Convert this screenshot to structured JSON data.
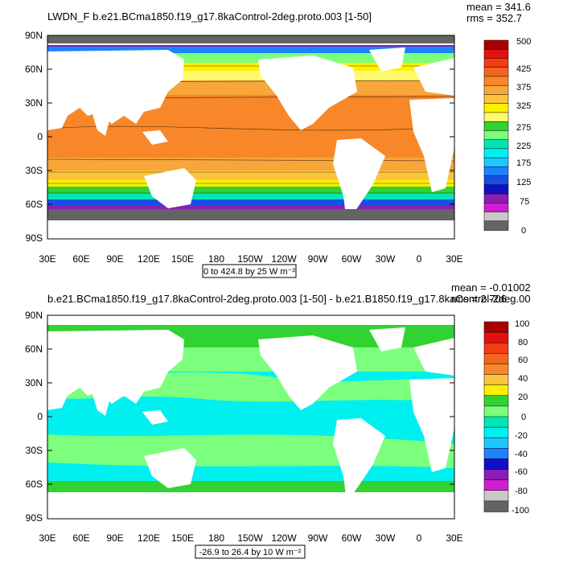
{
  "panels": [
    {
      "title": "LWDN_F b.e21.BCma1850.f19_g17.8kaControl-2deg.proto.003 [1-50]",
      "stats": {
        "mean": "mean = 341.6",
        "rms": "rms = 352.7"
      },
      "lat_labels": [
        "90N",
        "60N",
        "30N",
        "0",
        "30S",
        "60S",
        "90S"
      ],
      "lon_labels": [
        "30E",
        "60E",
        "90E",
        "120E",
        "150E",
        "180",
        "150W",
        "120W",
        "90W",
        "60W",
        "30W",
        "0",
        "30E"
      ],
      "range_label": "0 to 424.8 by 25  W m⁻²",
      "colorbar": {
        "labels": [
          "500",
          "425",
          "375",
          "325",
          "275",
          "225",
          "175",
          "125",
          "75",
          "0"
        ],
        "colors": [
          "#a80000",
          "#e51010",
          "#f23c14",
          "#f5641e",
          "#f78728",
          "#f8a63a",
          "#fcc43c",
          "#fff000",
          "#fff96e",
          "#32d232",
          "#7cff7c",
          "#00e6b4",
          "#00f0f0",
          "#1ec8ff",
          "#1e82ff",
          "#1450e6",
          "#1010c8",
          "#8c1eb4",
          "#d21ed2",
          "#c8c8c8",
          "#646464"
        ]
      }
    },
    {
      "title": "b.e21.BCma1850.f19_g17.8kaControl-2deg.proto.003 [1-50] - b.e21.B1850.f19_g17.8kaControl-2deg.00",
      "stats": {
        "mean": "mean = -0.01002",
        "rms": "rms = 2.706"
      },
      "lat_labels": [
        "90N",
        "60N",
        "30N",
        "0",
        "30S",
        "60S",
        "90S"
      ],
      "lon_labels": [
        "30E",
        "60E",
        "90E",
        "120E",
        "150E",
        "180",
        "150W",
        "120W",
        "90W",
        "60W",
        "30W",
        "0",
        "30E"
      ],
      "range_label": "-26.9 to 26.4 by 10  W m⁻²",
      "colorbar": {
        "labels": [
          "100",
          "80",
          "60",
          "40",
          "20",
          "0",
          "-20",
          "-40",
          "-60",
          "-80",
          "-100"
        ],
        "colors": [
          "#a80000",
          "#e51010",
          "#f23c14",
          "#f5641e",
          "#f78728",
          "#fcc43c",
          "#fff000",
          "#32d232",
          "#7cff7c",
          "#00e6b4",
          "#00f0f0",
          "#1ec8ff",
          "#1e82ff",
          "#1010c8",
          "#8c1eb4",
          "#d21ed2",
          "#c8c8c8",
          "#646464"
        ]
      }
    }
  ]
}
